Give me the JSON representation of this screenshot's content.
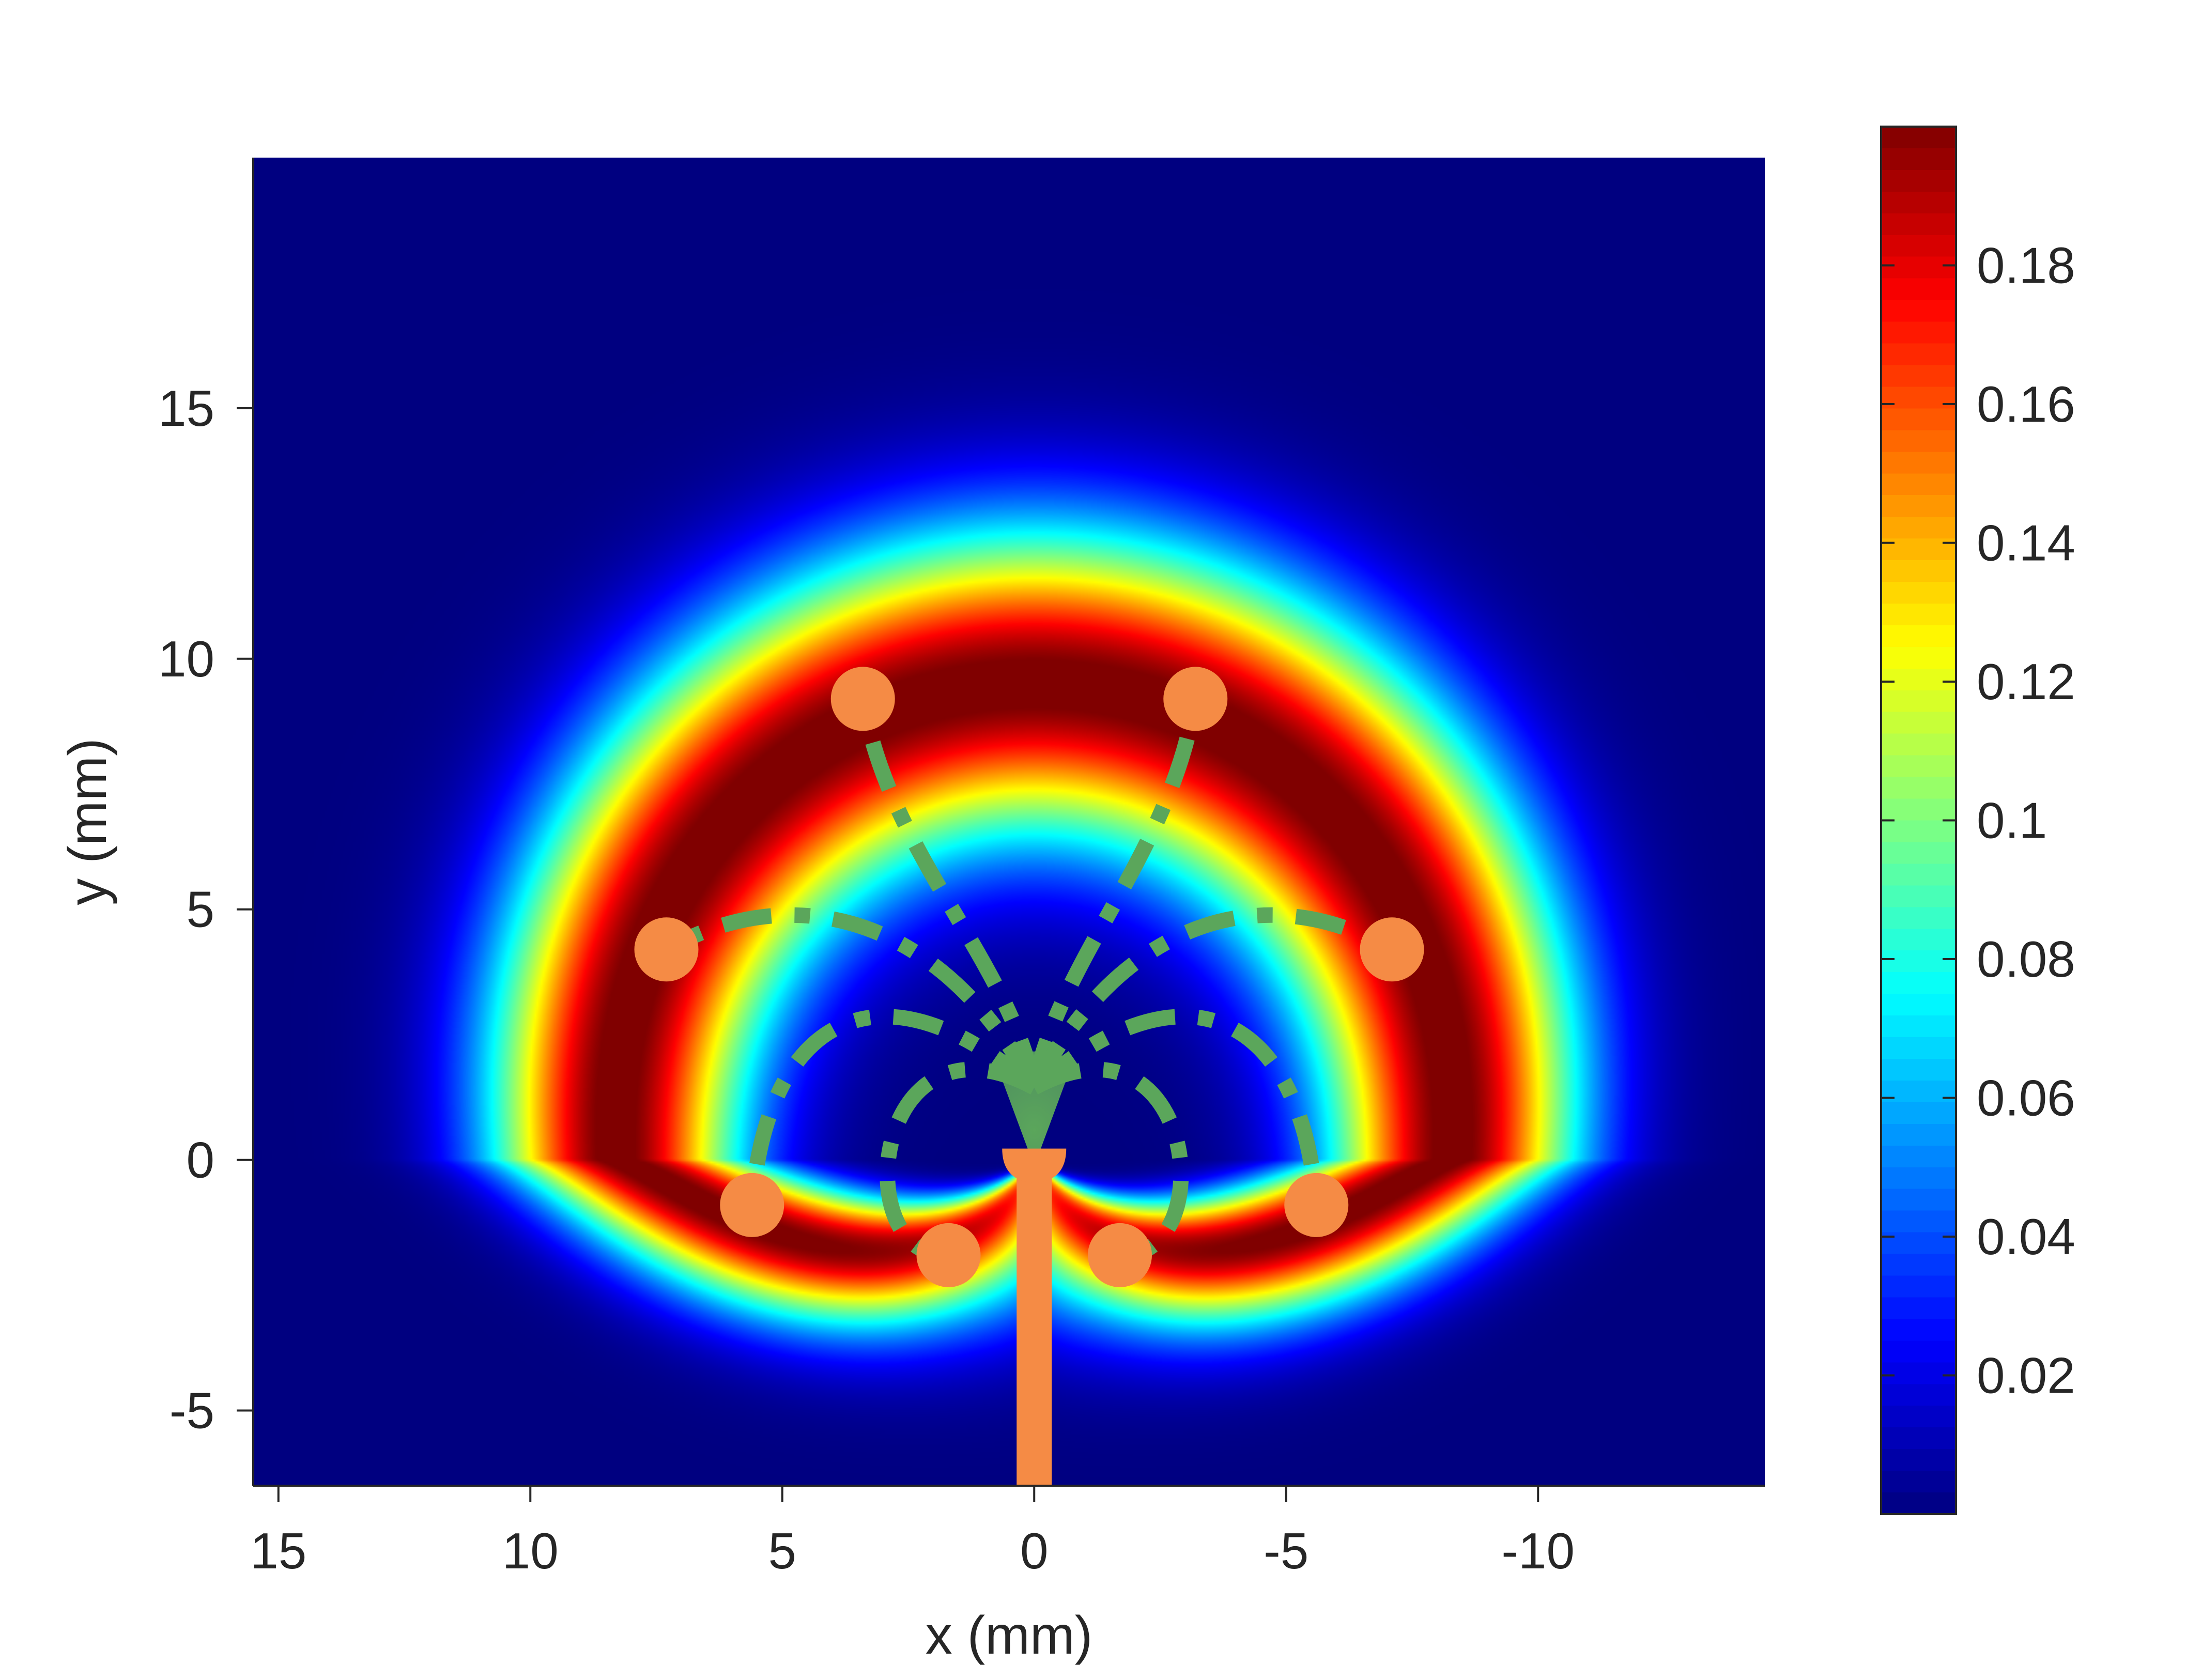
{
  "chart_data": [
    {
      "type": "heatmap",
      "title": "",
      "xlabel": "x (mm)",
      "ylabel": "y (mm)",
      "x_reversed": true,
      "xlim": [
        15.5,
        -14.5
      ],
      "ylim": [
        -6.5,
        20
      ],
      "xticks": [
        15,
        10,
        5,
        0,
        -5,
        -10
      ],
      "xtick_labels": [
        "15",
        "10",
        "5",
        "0",
        "-5",
        "-10"
      ],
      "yticks": [
        15,
        10,
        5,
        0,
        -5
      ],
      "ytick_labels": [
        "15",
        "10",
        "5",
        "0",
        "-5"
      ],
      "grid": false,
      "colormap": "jet",
      "colorbar": {
        "range": [
          0,
          0.2
        ],
        "ticks": [
          0.02,
          0.04,
          0.06,
          0.08,
          0.1,
          0.12,
          0.14,
          0.16,
          0.18
        ],
        "tick_labels": [
          "0.02",
          "0.04",
          "0.06",
          "0.08",
          "0.1",
          "0.12",
          "0.14",
          "0.16",
          "0.18"
        ],
        "location": "right"
      },
      "field_description_points": [
        {
          "angle_deg": 90,
          "peak_radius_mm": 9.5
        },
        {
          "angle_deg": 0,
          "peak_radius_mm": 8.3
        },
        {
          "angle_deg": -90,
          "peak_radius_mm": 0.5
        }
      ],
      "overlay": {
        "electrode_shaft": {
          "x": 0,
          "y_from": -6.5,
          "y_to": 0,
          "color": "#f58b45"
        },
        "electrode_tip": {
          "x": 0,
          "y": 0
        },
        "dipole_endpoints": [
          {
            "x": 3.4,
            "y": 9.2
          },
          {
            "x": -3.2,
            "y": 9.2
          },
          {
            "x": 7.3,
            "y": 4.2
          },
          {
            "x": -7.1,
            "y": 4.2
          },
          {
            "x": 5.6,
            "y": -0.9
          },
          {
            "x": -5.6,
            "y": -0.9
          },
          {
            "x": 1.7,
            "y": -1.9
          },
          {
            "x": -1.7,
            "y": -1.9
          }
        ],
        "endpoint_color": "#f58b45",
        "path_color": "#5ba65b",
        "path_style": "dash-dot"
      }
    }
  ]
}
